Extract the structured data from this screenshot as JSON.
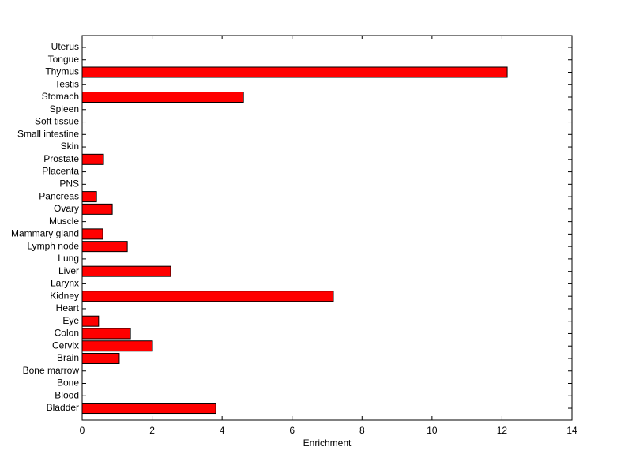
{
  "chart_data": {
    "type": "barh",
    "xlabel": "Enrichment",
    "categories": [
      "Bladder",
      "Blood",
      "Bone",
      "Bone marrow",
      "Brain",
      "Cervix",
      "Colon",
      "Eye",
      "Heart",
      "Kidney",
      "Larynx",
      "Liver",
      "Lung",
      "Lymph node",
      "Mammary gland",
      "Muscle",
      "Ovary",
      "Pancreas",
      "PNS",
      "Placenta",
      "Prostate",
      "Skin",
      "Small intestine",
      "Soft tissue",
      "Spleen",
      "Stomach",
      "Testis",
      "Thymus",
      "Tongue",
      "Uterus"
    ],
    "values": [
      3.82,
      0,
      0,
      0,
      1.06,
      2.01,
      1.38,
      0.47,
      0,
      7.18,
      0,
      2.53,
      0,
      1.29,
      0.59,
      0,
      0.86,
      0.41,
      0,
      0,
      0.61,
      0,
      0,
      0,
      0,
      4.61,
      0,
      12.15,
      0,
      0
    ],
    "color": "#ff0000",
    "xlim": [
      0,
      14
    ],
    "xticks": [
      0,
      2,
      4,
      6,
      8,
      10,
      12,
      14
    ]
  }
}
